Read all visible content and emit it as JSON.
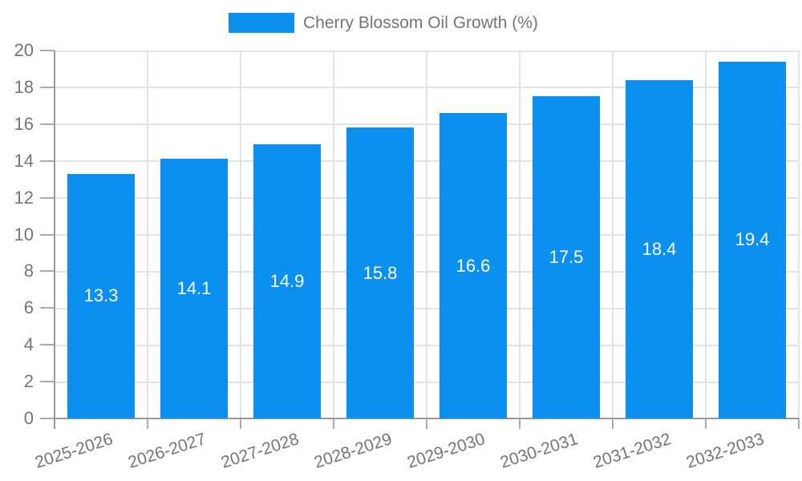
{
  "legend": {
    "label": "Cherry Blossom Oil Growth (%)"
  },
  "colors": {
    "bar": "#0c90f0",
    "grid": "#e3e3e3",
    "axis": "#9a9a9a",
    "tick": "#ababab",
    "text": "#757575",
    "value_label": "#ffffff",
    "background": "#ffffff"
  },
  "chart_data": {
    "type": "bar",
    "title": "",
    "categories": [
      "2025-2026",
      "2026-2027",
      "2027-2028",
      "2028-2029",
      "2029-2030",
      "2030-2031",
      "2031-2032",
      "2032-2033"
    ],
    "series": [
      {
        "name": "Cherry Blossom Oil Growth (%)",
        "values": [
          13.3,
          14.1,
          14.9,
          15.8,
          16.6,
          17.5,
          18.4,
          19.4
        ]
      }
    ],
    "value_labels": [
      "13.3",
      "14.1",
      "14.9",
      "15.8",
      "16.6",
      "17.5",
      "18.4",
      "19.4"
    ],
    "xlabel": "",
    "ylabel": "",
    "ylim": [
      0,
      20
    ],
    "ytick_step": 2,
    "yticks": [
      0,
      2,
      4,
      6,
      8,
      10,
      12,
      14,
      16,
      18,
      20
    ],
    "grid": true,
    "legend_position": "top-center",
    "value_label_position": "inside-center"
  }
}
